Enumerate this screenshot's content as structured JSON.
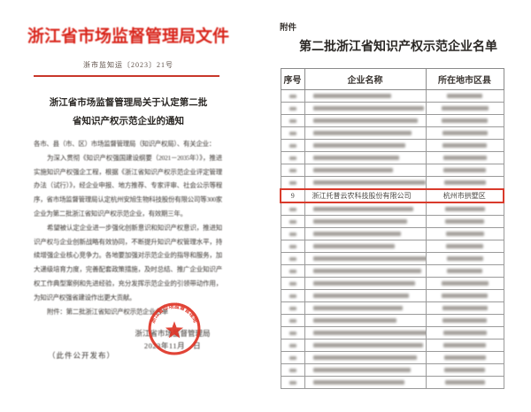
{
  "left_page": {
    "header_title": "浙江省市场监督管理局文件",
    "doc_number": "浙市监知运〔2023〕21号",
    "notice_title_line1": "浙江省市场监督管理局关于认定第二批",
    "notice_title_line2": "省知识产权示范企业的通知",
    "salutation": "各市、县（市、区）市场监督管理局（知识产权局）、有关企业：",
    "paragraph1": "为深入贯彻《知识产权强国建设纲要（2021－2035年）》，推进实施知识产权强企工程，根据《浙江省知识产权示范企业评定管理办法（试行）》，经企业申报、地方推荐、专家评审、社会公示等程序，省市场监督管理局认定杭州安旭生物科技股份有限公司等300家企业为第二批浙江省知识产权示范企业，有效期三年。",
    "paragraph2": "希望被认定企业进一步强化创新意识和知识产权意识，推进知识产权与企业创新战略有效协同，不断提升知识产权管理水平，持续增强企业核心竞争力。各地要加强对示范企业的指导和服务，加大递级培育力度，完善配套政策措施，及时总结、推广企业知识产权工作典型案例和先进经验，充分发挥示范企业的引领带动作用，为知识产权强省建设作出更大贡献。",
    "attachment_line": "附件：第二批浙江省知识产权示范企业名单",
    "signer": "浙江省市场监督管理局",
    "date_line": "2023年11月　日",
    "public_note": "（此件公开发布）",
    "seal_text": "浙江省市场监督管理局"
  },
  "right_page": {
    "attachment_label": "附件",
    "title": "第二批浙江省知识产权示范企业名单",
    "table": {
      "headers": [
        "序号",
        "企业名称",
        "所在地市区县"
      ],
      "rows": [
        {
          "blurred": true
        },
        {
          "blurred": true
        },
        {
          "blurred": true
        },
        {
          "blurred": true
        },
        {
          "blurred": true
        },
        {
          "blurred": true
        },
        {
          "blurred": true
        },
        {
          "blurred": true
        },
        {
          "no": "9",
          "name": "浙江托普云农科技股份有限公司",
          "location": "杭州市拱墅区",
          "highlighted": true
        },
        {
          "blurred": true
        },
        {
          "blurred": true
        },
        {
          "blurred": true
        },
        {
          "blurred": true
        },
        {
          "blurred": true
        },
        {
          "blurred": true
        },
        {
          "blurred": true
        },
        {
          "blurred": true
        },
        {
          "blurred": true
        },
        {
          "blurred": true
        },
        {
          "blurred": true
        },
        {
          "blurred": true
        },
        {
          "blurred": true
        },
        {
          "blurred": true
        },
        {
          "blurred": true
        }
      ]
    }
  },
  "colors": {
    "accent_red": "#d9261c",
    "seal_red": "#dd2b1c",
    "highlight_red": "#d93a2b",
    "table_border": "#9a9a9a",
    "text": "#30302e",
    "blurred_text_bar": "#8f8a84"
  }
}
